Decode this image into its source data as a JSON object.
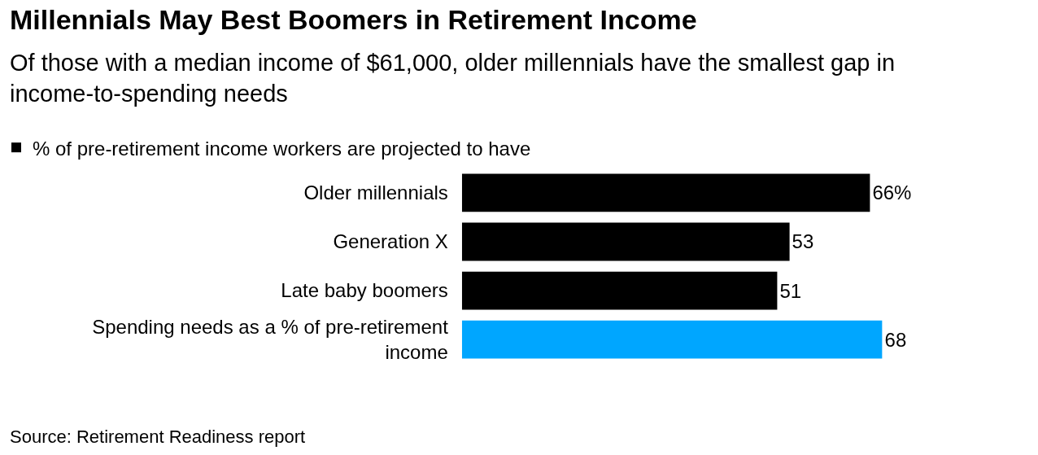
{
  "chart_data": {
    "type": "bar",
    "orientation": "horizontal",
    "title": "Millennials May Best Boomers in Retirement Income",
    "subtitle": "Of those with a median income of $61,000, older millennials have the smallest gap in income-to-spending needs",
    "categories": [
      "Older millennials",
      "Generation X",
      "Late baby boomers",
      "Spending needs as a % of pre-retirement income"
    ],
    "series": [
      {
        "name": "% of pre-retirement income workers are projected to have",
        "color": "#000000",
        "colors": [
          null,
          null,
          null,
          "#00a6ff"
        ],
        "values": [
          66,
          53,
          51,
          68
        ],
        "value_labels": [
          "66%",
          "53",
          "51",
          "68"
        ]
      }
    ],
    "legend": "top left",
    "annotations": [
      "Source: Retirement Readiness report"
    ]
  }
}
